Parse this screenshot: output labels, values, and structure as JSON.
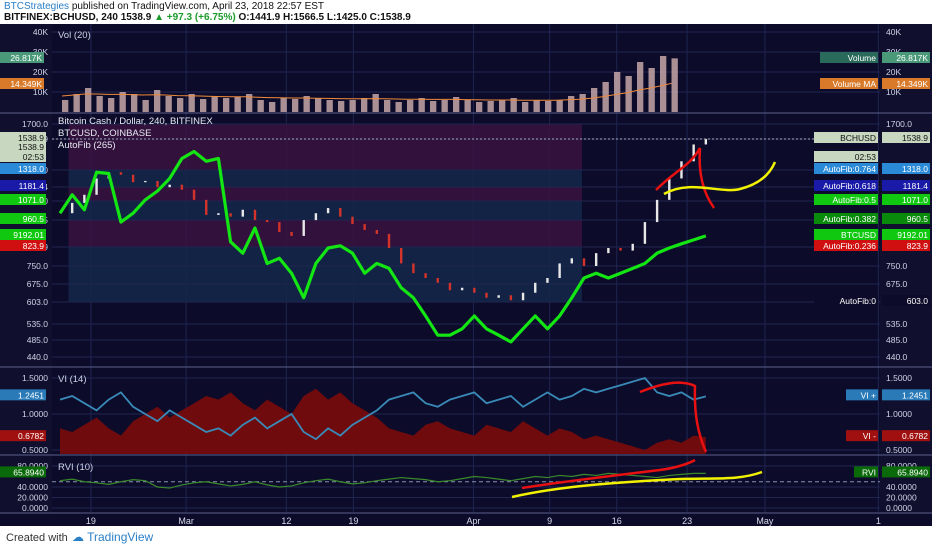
{
  "header": {
    "publisher": "BTCStrategies",
    "published_text": "published on TradingView.com, April 23, 2018 22:57 EST",
    "symbol_line": "BITFINEX:BCHUSD, 240",
    "close_label": "1538.9",
    "change_text": "▲ +97.3 (+6.75%)",
    "ohlc_text": "O:1441.9  H:1566.5  L:1425.0  C:1538.9"
  },
  "footer": {
    "created_with": "Created with",
    "logo_text": "TradingView"
  },
  "colors": {
    "background": "#0c0c2a",
    "grid": "#1f2450",
    "btc": "#14e614",
    "bch_up": "#e8e8e8",
    "bch_down": "#d2332a",
    "vol": "#d2b0b0",
    "vi_plus": "#3a8ab8",
    "vi_fill": "#7a0a0a",
    "rvi": "#3a8a2a",
    "annotation_red": "#e81010",
    "annotation_yellow": "#f2f200"
  },
  "chart_data": [
    {
      "type": "bar",
      "panel": "volume",
      "title": "Vol (20)",
      "yticks": [
        "40K",
        "30K",
        "20K",
        "10K"
      ],
      "ylim": [
        0,
        40000
      ],
      "legend": [
        {
          "name": "Volume",
          "value": "26.817K"
        },
        {
          "name": "Volume MA",
          "value": "14.349K"
        }
      ],
      "values": [
        6000,
        9000,
        12000,
        8000,
        7000,
        10000,
        9000,
        6000,
        11000,
        8000,
        7000,
        9000,
        6500,
        8000,
        7000,
        7500,
        9000,
        6000,
        5000,
        7000,
        6500,
        8000,
        7000,
        6000,
        5500,
        6000,
        7000,
        9000,
        6000,
        5000,
        6000,
        7000,
        5500,
        6000,
        7500,
        6000,
        5000,
        5500,
        6000,
        7000,
        5000,
        6000,
        5500,
        6000,
        8000,
        9000,
        12000,
        15000,
        20000,
        18000,
        25000,
        22000,
        28000,
        26817
      ],
      "ma_values": [
        8000,
        8500,
        9000,
        9000,
        8800,
        8800,
        8700,
        8500,
        8600,
        8500,
        8200,
        8100,
        8000,
        7800,
        7700,
        7600,
        7600,
        7400,
        7200,
        7100,
        7000,
        7000,
        6900,
        6800,
        6700,
        6600,
        6600,
        6700,
        6600,
        6500,
        6400,
        6400,
        6300,
        6300,
        6300,
        6200,
        6100,
        6000,
        6000,
        6000,
        5900,
        5900,
        5900,
        5900,
        6100,
        6400,
        6900,
        7600,
        8600,
        9500,
        10800,
        11800,
        13000,
        14349
      ]
    },
    {
      "type": "line",
      "panel": "price",
      "title": "Bitcoin Cash / Dollar, 240, BITFINEX",
      "subtitles": [
        "BTCUSD, COINBASE",
        "AutoFib (265)"
      ],
      "x_ticks": [
        "19",
        "Mar",
        "12",
        "19",
        "Apr",
        "9",
        "16",
        "23",
        "May",
        "1"
      ],
      "yticks": [
        "1700.0",
        "1538.9",
        "1318.0",
        "1181.4",
        "1071.0",
        "960.5",
        "823.9",
        "750.0",
        "675.0",
        "603.0",
        "535.0",
        "485.0",
        "440.0"
      ],
      "left_axis_labels": [
        "1538.9",
        "1538.9",
        "02:53",
        "1318.0",
        "1181.4",
        "1071.0",
        "960.5",
        "9192.01",
        "823.9"
      ],
      "right_labels": [
        {
          "text": "BCHUSD",
          "value": "1538.9"
        },
        {
          "text": "02:53"
        },
        {
          "text": "AutoFib:0.764",
          "value": "1318.0"
        },
        {
          "text": "AutoFib:0.618",
          "value": "1181.4"
        },
        {
          "text": "AutoFib:0.5",
          "value": "1071.0"
        },
        {
          "text": "AutoFib:0.382",
          "value": "960.5"
        },
        {
          "text": "BTCUSD",
          "value": "9192.01"
        },
        {
          "text": "AutoFib:0.236",
          "value": "823.9"
        },
        {
          "text": "AutoFib:0",
          "value": "603.0"
        }
      ],
      "fib_levels": [
        1700.0,
        1318.0,
        1181.4,
        1071.0,
        960.5,
        823.9,
        603.0
      ],
      "series": [
        {
          "name": "BCHUSD",
          "values": [
            1000,
            1060,
            1120,
            1250,
            1300,
            1280,
            1220,
            1230,
            1180,
            1200,
            1160,
            1080,
            990,
            1000,
            980,
            1020,
            960,
            950,
            900,
            880,
            960,
            1000,
            1030,
            980,
            940,
            910,
            890,
            820,
            760,
            720,
            700,
            680,
            650,
            660,
            640,
            620,
            630,
            610,
            640,
            680,
            700,
            760,
            780,
            750,
            800,
            820,
            810,
            840,
            950,
            1080,
            1250,
            1380,
            1500,
            1538.9
          ]
        },
        {
          "name": "BTCUSD",
          "values": [
            1000,
            1120,
            1020,
            1300,
            1290,
            950,
            1000,
            1080,
            1150,
            1250,
            1400,
            1450,
            1380,
            1400,
            850,
            800,
            920,
            760,
            780,
            720,
            620,
            760,
            820,
            830,
            800,
            720,
            760,
            740,
            660,
            620,
            560,
            500,
            500,
            520,
            560,
            520,
            500,
            480,
            520,
            560,
            520,
            560,
            620,
            700,
            720,
            700,
            720,
            740,
            760,
            800,
            820,
            840,
            860,
            880
          ]
        }
      ]
    },
    {
      "type": "area",
      "panel": "vortex",
      "title": "VI (14)",
      "yticks": [
        "1.5000",
        "1.0000",
        "0.5000"
      ],
      "ylim": [
        0.5,
        1.5
      ],
      "legend": [
        {
          "name": "VI +",
          "value": "1.2451"
        },
        {
          "name": "VI -",
          "value": "0.6782"
        }
      ],
      "series": [
        {
          "name": "VI +",
          "values": [
            1.2,
            1.25,
            1.15,
            1.05,
            1.2,
            1.3,
            1.1,
            1.0,
            0.9,
            1.05,
            0.95,
            0.85,
            0.75,
            0.8,
            0.7,
            0.85,
            0.95,
            0.8,
            0.9,
            1.0,
            0.75,
            0.65,
            0.8,
            0.7,
            0.85,
            0.95,
            1.05,
            1.2,
            1.25,
            1.3,
            1.15,
            1.1,
            1.2,
            1.25,
            1.3,
            1.15,
            1.2,
            1.25,
            1.1,
            1.2,
            1.3,
            1.2,
            1.25,
            1.35,
            1.3,
            1.35,
            1.4,
            1.45,
            1.5,
            1.3,
            1.25,
            1.3,
            1.2,
            1.2451
          ]
        },
        {
          "name": "VI -",
          "values": [
            0.8,
            0.75,
            0.85,
            0.95,
            0.8,
            0.7,
            0.9,
            1.0,
            1.1,
            0.95,
            1.05,
            1.15,
            1.25,
            1.2,
            1.3,
            1.15,
            1.05,
            1.2,
            1.1,
            1.0,
            1.25,
            1.35,
            1.2,
            1.3,
            1.15,
            1.05,
            0.95,
            0.8,
            0.75,
            0.7,
            0.85,
            0.9,
            0.8,
            0.75,
            0.7,
            0.85,
            0.8,
            0.75,
            0.9,
            0.8,
            0.7,
            0.8,
            0.75,
            0.65,
            0.7,
            0.65,
            0.6,
            0.55,
            0.5,
            0.6,
            0.65,
            0.6,
            0.7,
            0.6782
          ]
        }
      ]
    },
    {
      "type": "line",
      "panel": "rvi",
      "title": "RVI (10)",
      "yticks": [
        "80.0000",
        "65.8940",
        "40.0000",
        "20.0000",
        "0.0000"
      ],
      "ylim": [
        0,
        80
      ],
      "legend": [
        {
          "name": "RVI",
          "value": "65.8940"
        }
      ],
      "values": [
        52,
        55,
        50,
        48,
        45,
        50,
        54,
        52,
        40,
        38,
        44,
        48,
        50,
        46,
        42,
        45,
        50,
        44,
        40,
        42,
        48,
        52,
        55,
        50,
        46,
        48,
        52,
        55,
        58,
        56,
        54,
        50,
        52,
        56,
        60,
        58,
        55,
        52,
        56,
        60,
        58,
        62,
        60,
        64,
        62,
        66,
        64,
        62,
        60,
        58,
        62,
        64,
        66,
        65.894
      ]
    }
  ]
}
